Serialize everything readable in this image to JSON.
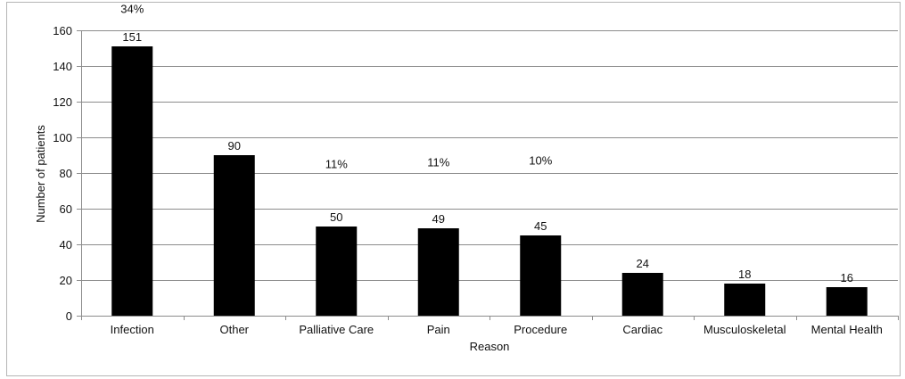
{
  "chart_data": {
    "type": "bar",
    "title": "",
    "xlabel": "Reason",
    "ylabel": "Number of patients",
    "categories": [
      "Infection",
      "Other",
      "Palliative Care",
      "Pain",
      "Procedure",
      "Cardiac",
      "Musculoskeletal",
      "Mental Health"
    ],
    "values": [
      151,
      90,
      50,
      49,
      45,
      24,
      18,
      16
    ],
    "value_labels": [
      "151",
      "90",
      "50",
      "49",
      "45",
      "24",
      "18",
      "16"
    ],
    "percent_labels": [
      "34%",
      "",
      "11%",
      "11%",
      "10%",
      "",
      "",
      ""
    ],
    "percent_label_values": [
      172,
      0,
      85,
      86,
      87,
      0,
      0,
      0
    ],
    "ylim": [
      0,
      160
    ],
    "yticks": [
      0,
      20,
      40,
      60,
      80,
      100,
      120,
      140,
      160
    ],
    "grid": true,
    "legend": "none",
    "colors": {
      "bar": "#000000",
      "grid": "#8c8c8c",
      "axis": "#8c8c8c",
      "frame": "#b5b5b5"
    }
  }
}
